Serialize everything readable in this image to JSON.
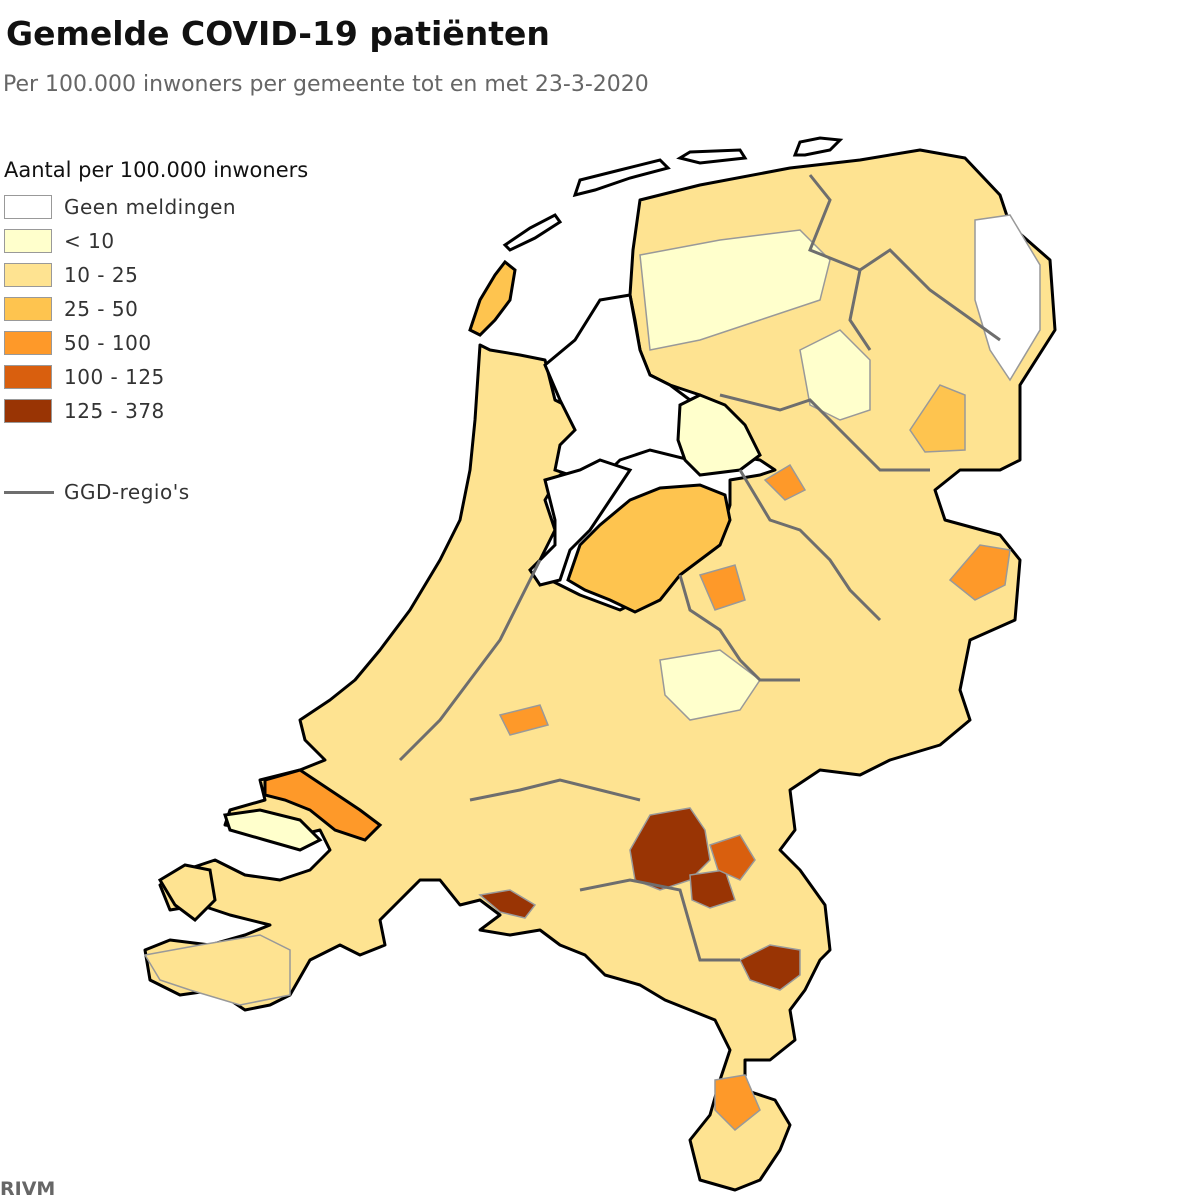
{
  "header": {
    "title": "Gemelde COVID-19 patiënten",
    "subtitle": "Per 100.000 inwoners per gemeente tot en met 23-3-2020"
  },
  "legend": {
    "title": "Aantal per 100.000 inwoners",
    "items": [
      {
        "label": "Geen meldingen",
        "color": "#ffffff"
      },
      {
        "label": "< 10",
        "color": "#ffffcc"
      },
      {
        "label": "10 - 25",
        "color": "#fee391"
      },
      {
        "label": "25 - 50",
        "color": "#fec44f"
      },
      {
        "label": "50 - 100",
        "color": "#fe9929"
      },
      {
        "label": "100 - 125",
        "color": "#d95f0e"
      },
      {
        "label": "125 - 378",
        "color": "#993404"
      }
    ],
    "ggd_label": "GGD-regio's",
    "ggd_color": "#6e6e6e"
  },
  "source": "RIVM"
}
